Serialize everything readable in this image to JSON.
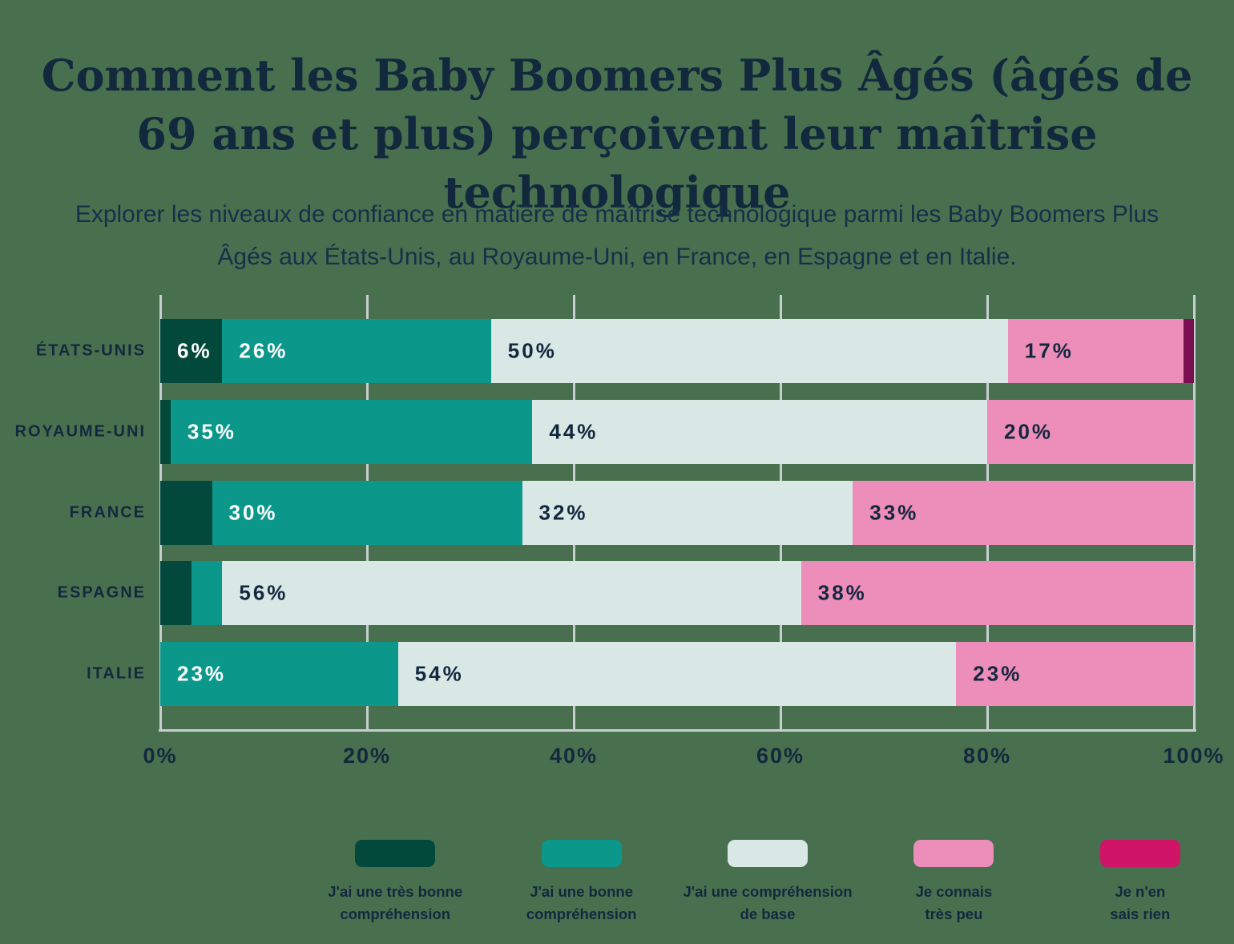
{
  "title": "Comment les Baby Boomers Plus Âgés (âgés de 69 ans et plus) perçoivent leur maîtrise technologique",
  "subtitle": "Explorer les niveaux de confiance en matière de maîtrise technologique parmi les Baby Boomers Plus Âgés aux États-Unis, au Royaume-Uni, en France, en Espagne et en Italie.",
  "colors": {
    "background": "#48704E",
    "text_dark": "#13283E",
    "text_light": "#FFFFFF",
    "gridline": "#C7CED2",
    "very_good_green": "#03493B",
    "good_teal": "#0B988B",
    "basic_pale": "#D9E7E5",
    "little_pink": "#EC8DBA",
    "nothing_bar_plum": "#7A1050",
    "nothing_legend_magenta": "#D01468"
  },
  "chart_data": {
    "type": "bar",
    "variant": "stacked-horizontal",
    "xlim": [
      0,
      100
    ],
    "tick_values": [
      0,
      20,
      40,
      60,
      80,
      100
    ],
    "ticks": [
      "0%",
      "20%",
      "40%",
      "60%",
      "80%",
      "100%"
    ],
    "grid": true,
    "legend_position": "bottom",
    "label_min_value": 6,
    "label_suffix": "%",
    "categories": [
      "ÉTATS-UNIS",
      "ROYAUME-UNI",
      "FRANCE",
      "ESPAGNE",
      "ITALIE"
    ],
    "series": [
      {
        "name": "J'ai une très bonne compréhension",
        "color": "#03493B",
        "label_color": "#FFFFFF",
        "values": [
          6,
          1,
          5,
          3,
          0
        ]
      },
      {
        "name": "J'ai une bonne compréhension",
        "color": "#0B988B",
        "label_color": "#FFFFFF",
        "values": [
          26,
          35,
          30,
          3,
          23
        ]
      },
      {
        "name": "J'ai une compréhension de base",
        "color": "#D9E7E5",
        "label_color": "#13283E",
        "values": [
          50,
          44,
          32,
          56,
          54
        ]
      },
      {
        "name": "Je connais très peu",
        "color": "#EC8DBA",
        "label_color": "#13283E",
        "values": [
          17,
          20,
          33,
          38,
          23
        ]
      },
      {
        "name": "Je n'en sais rien",
        "color": "#7A1050",
        "label_color": "#FFFFFF",
        "values": [
          1,
          0,
          0,
          0,
          0
        ]
      }
    ]
  },
  "legend": {
    "items": [
      {
        "label": "J'ai une très bonne\ncompréhension",
        "color": "#03493B"
      },
      {
        "label": "J'ai une bonne\ncompréhension",
        "color": "#0B988B"
      },
      {
        "label": "J'ai une compréhension\nde base",
        "color": "#D9E7E5"
      },
      {
        "label": "Je connais\ntrès peu",
        "color": "#EC8DBA"
      },
      {
        "label": "Je n'en\nsais rien",
        "color": "#D01468"
      }
    ]
  }
}
